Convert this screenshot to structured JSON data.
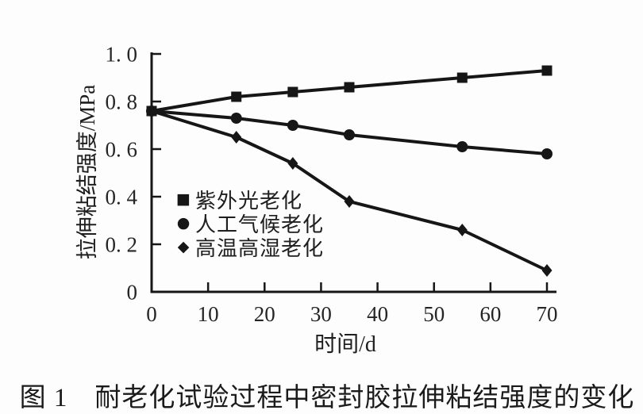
{
  "figure": {
    "caption": "图 1　耐老化试验过程中密封胶拉伸粘结强度的变化"
  },
  "chart_data": {
    "type": "line",
    "title": "",
    "xlabel": "时间/d",
    "ylabel": "拉伸粘结强度/MPa",
    "xlim": [
      0,
      70
    ],
    "ylim": [
      0,
      1.0
    ],
    "grid": false,
    "legend_position": "inside-left",
    "line_color": "#161616",
    "x_ticks": [
      0,
      10,
      20,
      30,
      40,
      50,
      60,
      70
    ],
    "x_tick_labels": [
      "0",
      "10",
      "20",
      "30",
      "40",
      "50",
      "60",
      "70"
    ],
    "y_ticks": [
      0,
      0.2,
      0.4,
      0.6,
      0.8,
      1.0
    ],
    "y_tick_labels": [
      "0",
      "0. 2",
      "0. 4",
      "0. 6",
      "0. 8",
      "1. 0"
    ],
    "x": [
      0,
      15,
      25,
      35,
      55,
      70
    ],
    "series": [
      {
        "name": "紫外光老化",
        "marker": "square",
        "marker_glyph": "■",
        "values": [
          0.76,
          0.82,
          0.84,
          0.86,
          0.9,
          0.93
        ]
      },
      {
        "name": "人工气候老化",
        "marker": "circle",
        "marker_glyph": "●",
        "values": [
          0.76,
          0.73,
          0.7,
          0.66,
          0.61,
          0.58
        ]
      },
      {
        "name": "高温高湿老化",
        "marker": "diamond",
        "marker_glyph": "◆",
        "values": [
          0.76,
          0.65,
          0.54,
          0.38,
          0.26,
          0.09
        ]
      }
    ]
  }
}
